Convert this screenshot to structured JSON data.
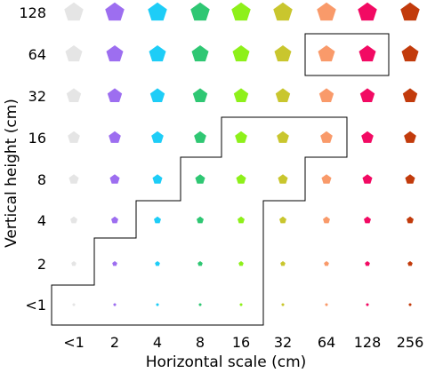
{
  "chart_data": {
    "type": "scatter",
    "title": "",
    "xlabel": "Horizontal scale (cm)",
    "ylabel": "Vertical height (cm)",
    "x_categories": [
      "<1",
      "2",
      "4",
      "8",
      "16",
      "32",
      "64",
      "128",
      "256"
    ],
    "y_categories": [
      "<1",
      "2",
      "4",
      "8",
      "16",
      "32",
      "64",
      "128"
    ],
    "marker": "pentagon",
    "marker_size_encodes": "vertical height",
    "column_colors": [
      "#e5e5e5",
      "#9d6ef0",
      "#1ecdf7",
      "#2fc773",
      "#8ef01a",
      "#c9c62e",
      "#f99a6a",
      "#f20a63",
      "#c23b0c"
    ],
    "grid": false,
    "legend": "none",
    "highlight_regions": [
      {
        "name": "staircase region",
        "cells": [
          [
            "<1",
            "<1"
          ],
          [
            "2",
            "<1"
          ],
          [
            "4",
            "<1"
          ],
          [
            "4",
            "2"
          ],
          [
            "8",
            "2"
          ],
          [
            "8",
            "4"
          ],
          [
            "16",
            "4"
          ],
          [
            "16",
            "8"
          ],
          [
            "32",
            "8"
          ],
          [
            "32",
            "16"
          ],
          [
            "64",
            "16"
          ]
        ]
      },
      {
        "name": "top box",
        "cells": [
          [
            "64",
            "64"
          ],
          [
            "128",
            "64"
          ]
        ]
      }
    ]
  }
}
